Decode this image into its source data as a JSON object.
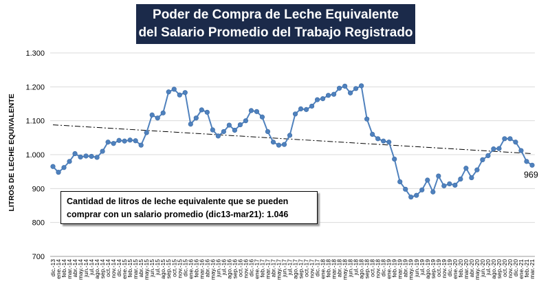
{
  "title": {
    "line1": "Poder de Compra de Leche Equivalente",
    "line2": "del Salario Promedio del Trabajo Registrado"
  },
  "note": {
    "line1": "Cantidad de litros de leche equivalente que se pueden",
    "line2": "comprar con un salario promedio (dic13-mar21): 1.046"
  },
  "colors": {
    "line": "#4f81bd",
    "marker_fill": "#4f81bd",
    "grid": "#d9d9d9",
    "trend": "#000000",
    "title_bg": "#1b2a4a"
  },
  "chart_data": {
    "type": "line",
    "title": "Poder de Compra de Leche Equivalente del Salario Promedio del Trabajo Registrado",
    "ylabel": "LITROS DE LECHE EQUIVALENTE",
    "xlabel": "",
    "ylim": [
      700,
      1300
    ],
    "yticks": [
      700,
      800,
      900,
      1000,
      1100,
      1200,
      1300
    ],
    "ytick_labels": [
      "700",
      "800",
      "900",
      "1.000",
      "1.100",
      "1.200",
      "1.300"
    ],
    "grid": true,
    "trendline": {
      "type": "linear",
      "style": "dash-dot",
      "start": 1088,
      "end": 1003
    },
    "last_label": "969",
    "categories": [
      "dic.-13",
      "ene.-14",
      "feb.-14",
      "mar.-14",
      "abr.-14",
      "may.-14",
      "jun.-14",
      "jul.-14",
      "ago.-14",
      "sep.-14",
      "oct.-14",
      "nov.-14",
      "dic.-14",
      "ene.-15",
      "feb.-15",
      "mar.-15",
      "abr.-15",
      "may.-15",
      "jun.-15",
      "jul.-15",
      "ago.-15",
      "sep.-15",
      "oct.-15",
      "nov.-15",
      "dic.-15",
      "ene.-16",
      "feb.-16",
      "mar.-16",
      "abr.-16",
      "may.-16",
      "jun.-16",
      "jul.-16",
      "ago.-16",
      "sep.-16",
      "oct.-16",
      "nov.-16",
      "dic.-16",
      "ene.-17",
      "feb.-17",
      "mar.-17",
      "abr.-17",
      "may.-17",
      "jun.-17",
      "jul.-17",
      "ago.-17",
      "sep.-17",
      "oct.-17",
      "nov.-17",
      "dic.-17",
      "ene.-18",
      "feb.-18",
      "mar.-18",
      "abr.-18",
      "may.-18",
      "jun.-18",
      "jul.-18",
      "ago.-18",
      "sep.-18",
      "oct.-18",
      "nov.-18",
      "dic.-18",
      "ene.-19",
      "feb.-19",
      "mar.-19",
      "abr.-19",
      "may.-19",
      "jun.-19",
      "jul.-19",
      "ago.-19",
      "sep.-19",
      "oct.-19",
      "nov.-19",
      "dic.-19",
      "ene.-20",
      "feb.-20",
      "mar.-20",
      "abr.-20",
      "may.-20",
      "jun.-20",
      "jul.-20",
      "ago.-20",
      "sep.-20",
      "oct.-20",
      "nov.-20",
      "dic.-20",
      "ene.-21",
      "feb.-21",
      "mar.-21"
    ],
    "xtick_labels": [
      "dic.-13",
      "",
      "feb.-14",
      "",
      "abr.-14",
      "",
      "jun.-14",
      "",
      "ago.-14",
      "",
      "oct.-14",
      "",
      "dic.-14",
      "",
      "feb.-15",
      "",
      "abr.-15",
      "",
      "jun.-15",
      "",
      "ago.-15",
      "",
      "oct.-15",
      "",
      "dic.-15",
      "",
      "feb.-16",
      "",
      "abr.-16",
      "",
      "jun.-16",
      "",
      "ago.-16",
      "",
      "oct.-16",
      "",
      "dic.-16",
      "",
      "feb.-17",
      "",
      "abr.-17",
      "",
      "jun.-17",
      "",
      "ago.-17",
      "",
      "oct.-17",
      "",
      "dic.-17",
      "",
      "feb.-18",
      "",
      "abr.-18",
      "",
      "jun.-18",
      "",
      "ago.-18",
      "",
      "oct.-18",
      "",
      "dic.-18",
      "",
      "feb.-19",
      "",
      "abr.-19",
      "",
      "jun.-19",
      "",
      "ago.-19",
      "",
      "oct.-19",
      "",
      "dic.-19",
      "",
      "feb.-20",
      "",
      "abr.-20",
      "",
      "jun.-20",
      "",
      "ago.-20",
      "",
      "oct.-20",
      "",
      "dic.-20",
      "",
      "feb.-21",
      ""
    ],
    "xtick_labels_alt": [
      "",
      "ene.-14",
      "",
      "mar.-14",
      "",
      "may.-14",
      "",
      "jul.-14",
      "",
      "sep.-14",
      "",
      "nov.-14",
      "",
      "ene.-15",
      "",
      "mar.-15",
      "",
      "may.-15",
      "",
      "jul.-15",
      "",
      "sep.-15",
      "",
      "nov.-15",
      "",
      "ene.-16",
      "",
      "mar.-16",
      "",
      "may.-16",
      "",
      "jul.-16",
      "",
      "sep.-16",
      "",
      "nov.-16",
      "",
      "ene.-17",
      "",
      "mar.-17",
      "",
      "may.-17",
      "",
      "jul.-17",
      "",
      "sep.-17",
      "",
      "nov.-17",
      "",
      "ene.-18",
      "",
      "mar.-18",
      "",
      "may.-18",
      "",
      "jul.-18",
      "",
      "sep.-18",
      "",
      "nov.-18",
      "",
      "ene.-19",
      "",
      "mar.-19",
      "",
      "may.-19",
      "",
      "jul.-19",
      "",
      "sep.-19",
      "",
      "nov.-19",
      "",
      "ene.-20",
      "",
      "mar.-20",
      "",
      "may.-20",
      "",
      "jul.-20",
      "",
      "sep.-20",
      "",
      "nov.-20",
      "",
      "ene.-21",
      "",
      "mar.-21"
    ],
    "series": [
      {
        "values": [
          965,
          948,
          962,
          980,
          1003,
          993,
          996,
          995,
          992,
          1010,
          1037,
          1033,
          1042,
          1040,
          1043,
          1041,
          1028,
          1065,
          1117,
          1108,
          1123,
          1185,
          1193,
          1176,
          1183,
          1090,
          1108,
          1132,
          1125,
          1073,
          1055,
          1068,
          1087,
          1072,
          1088,
          1100,
          1130,
          1127,
          1111,
          1068,
          1037,
          1028,
          1030,
          1057,
          1120,
          1135,
          1133,
          1143,
          1162,
          1165,
          1175,
          1178,
          1196,
          1202,
          1182,
          1195,
          1203,
          1105,
          1060,
          1047,
          1040,
          1037,
          987,
          920,
          898,
          875,
          880,
          896,
          925,
          890,
          937,
          908,
          914,
          910,
          928,
          960,
          932,
          955,
          985,
          997,
          1017,
          1018,
          1047,
          1047,
          1037,
          1012,
          980,
          969
        ]
      }
    ]
  }
}
